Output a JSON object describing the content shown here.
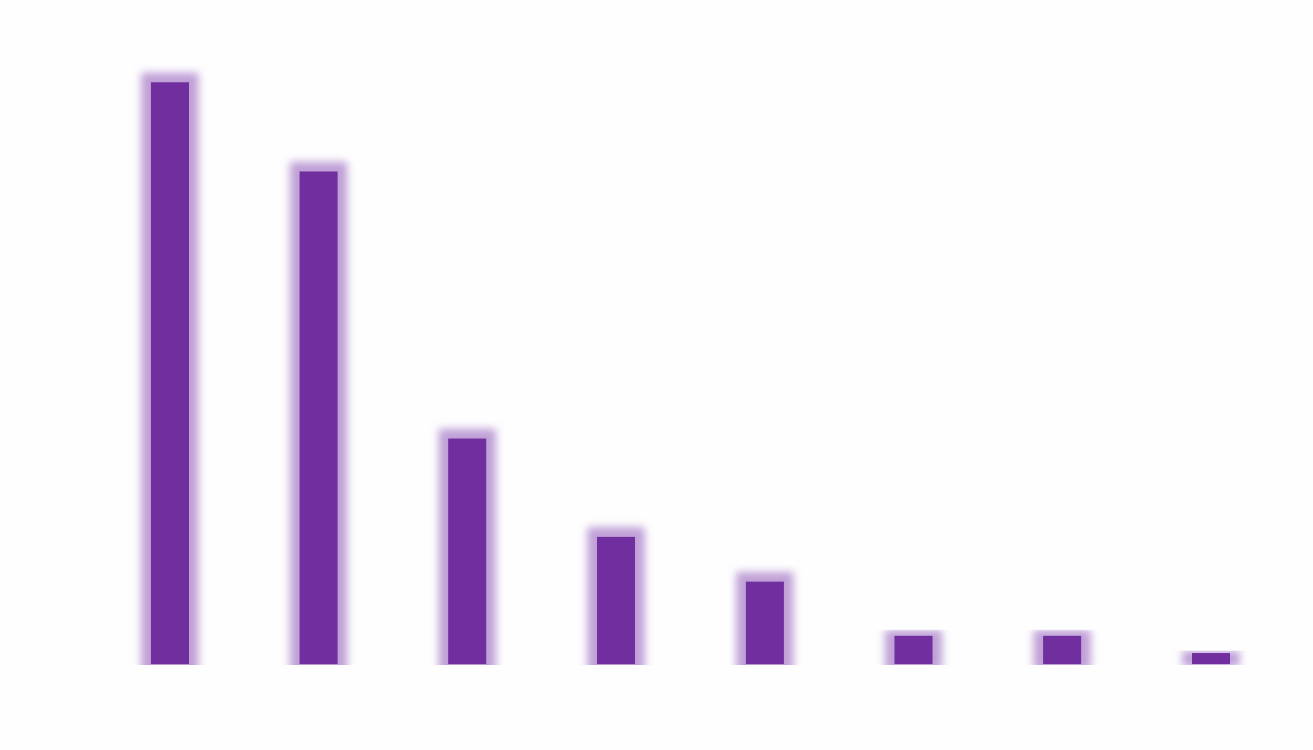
{
  "chart_data": {
    "type": "bar",
    "categories": [
      null,
      null,
      null,
      null,
      null,
      null,
      null,
      null
    ],
    "values": [
      100,
      84.7,
      38.8,
      21.9,
      14.2,
      4.9,
      4.9,
      1.9
    ],
    "color": "#6f2f9f",
    "ylim": [
      0,
      100
    ]
  }
}
